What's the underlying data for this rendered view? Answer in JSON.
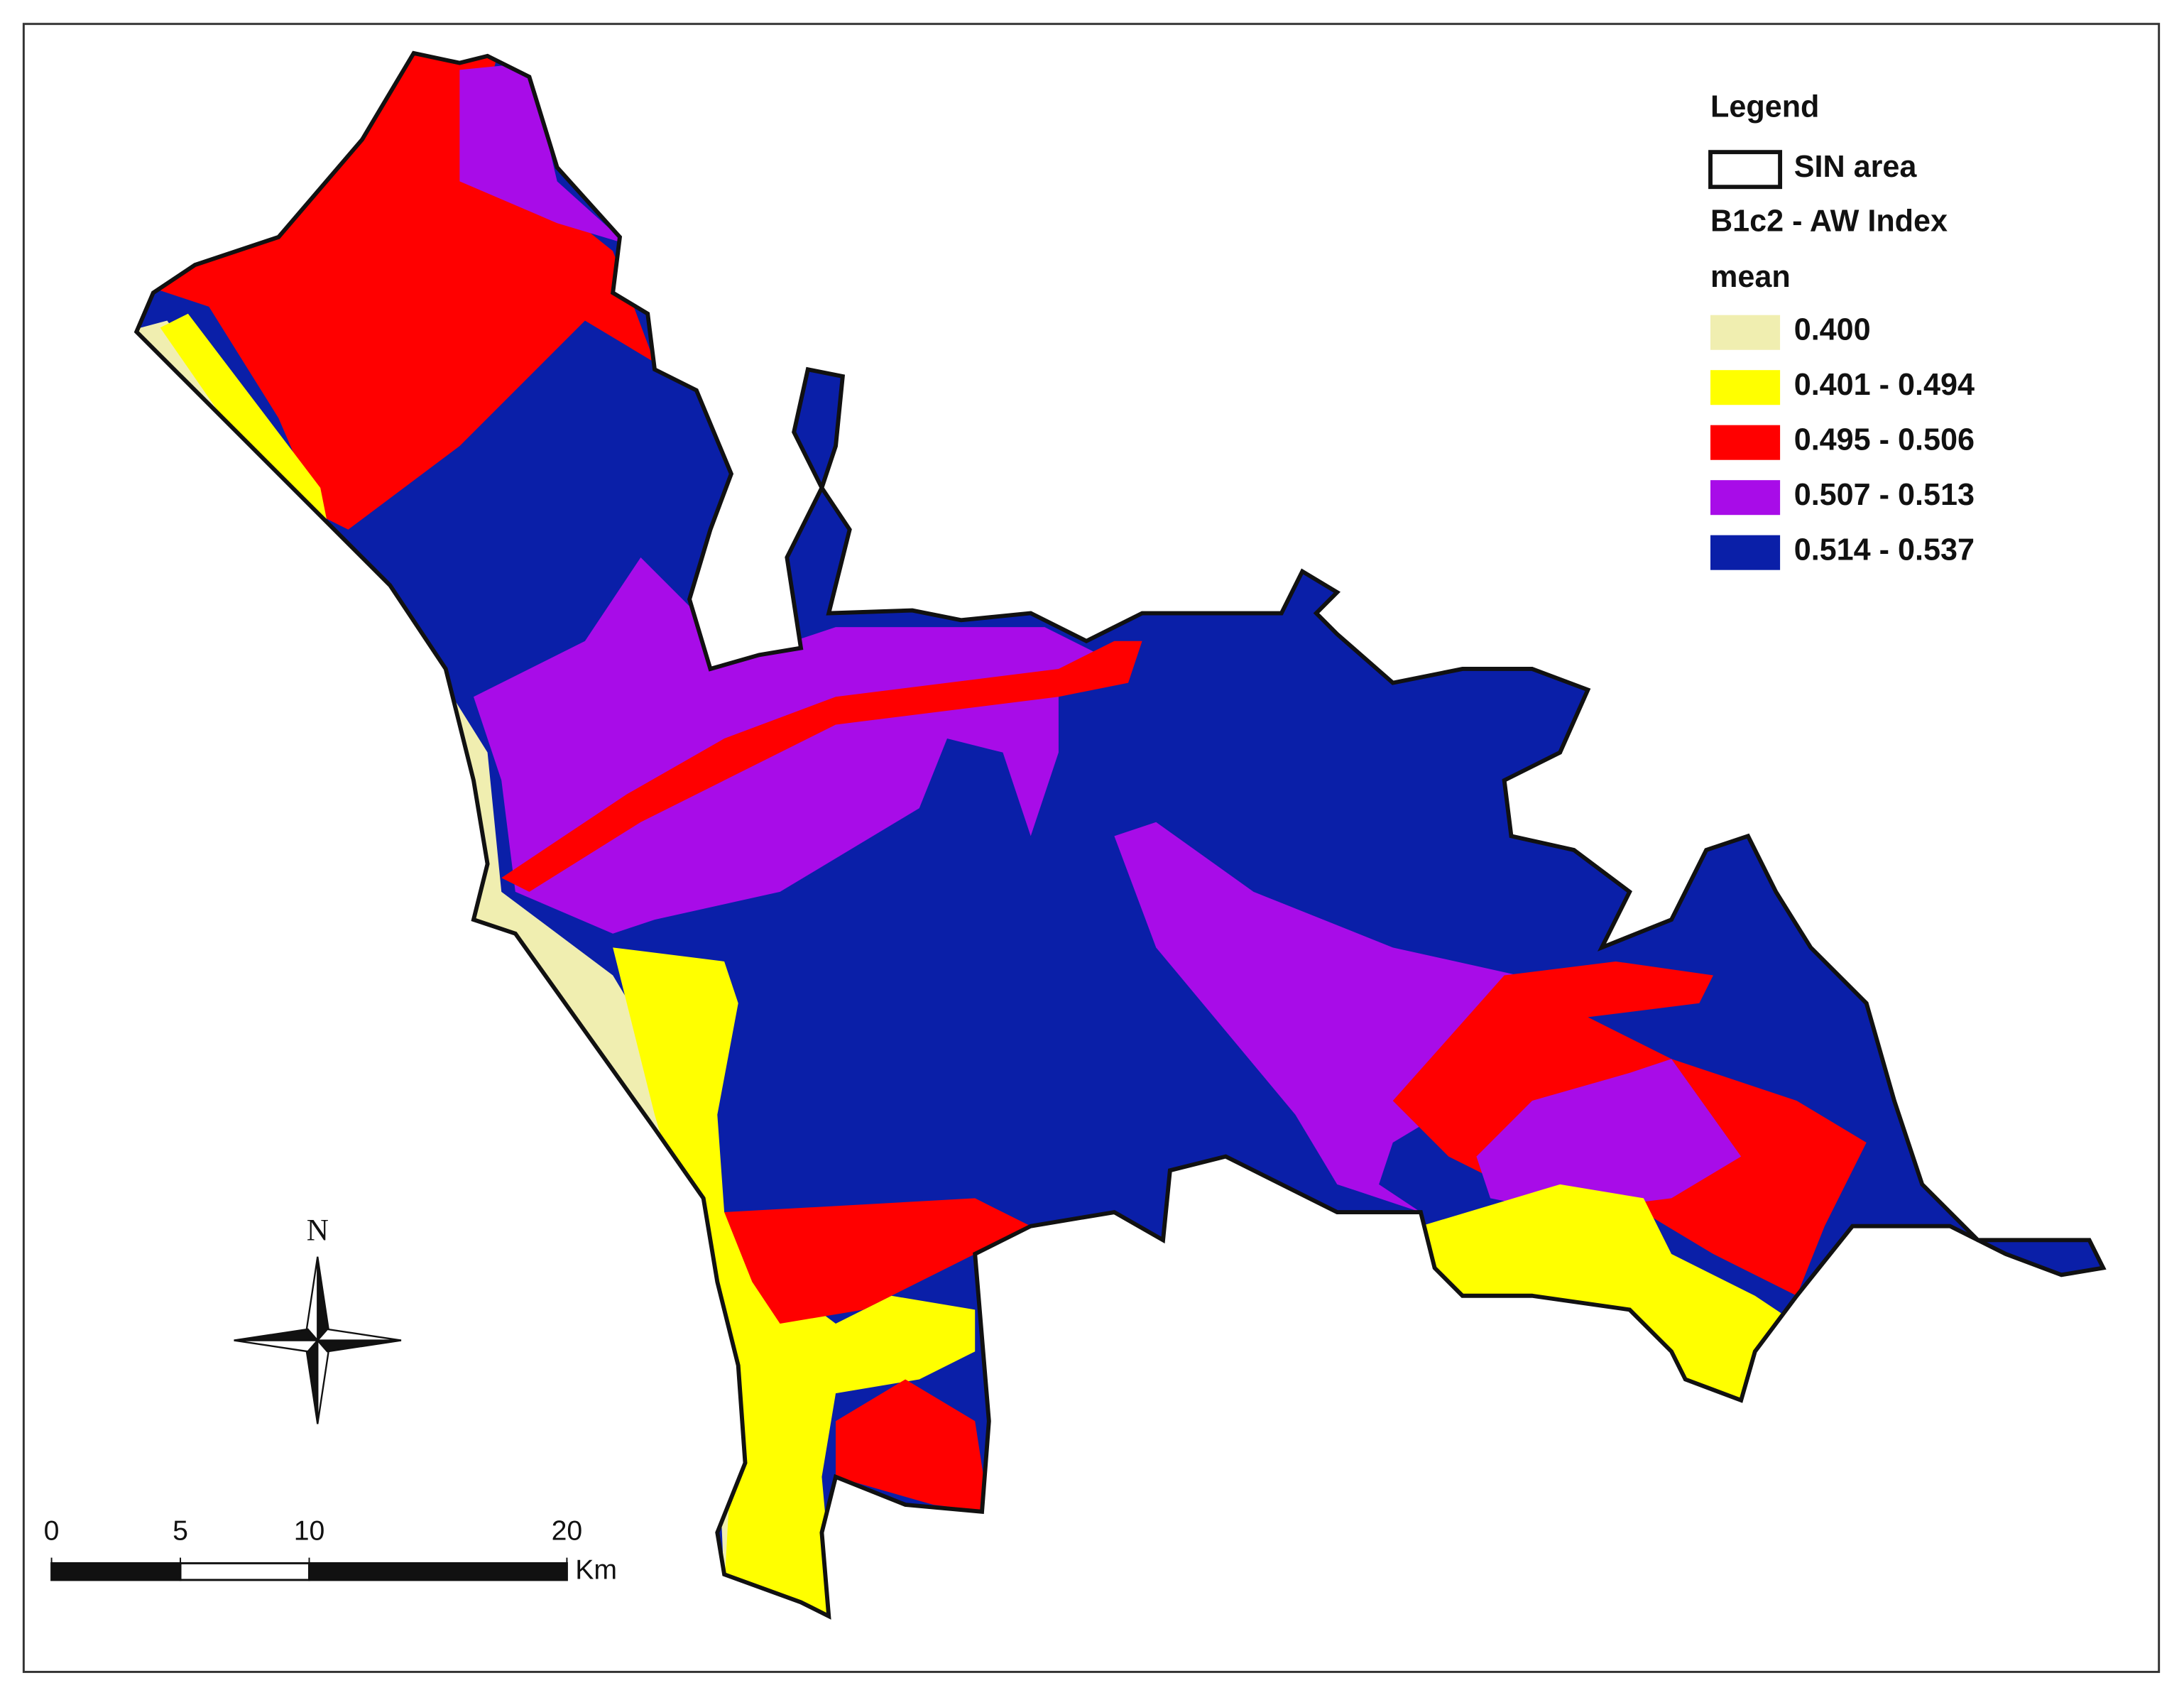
{
  "legend": {
    "title": "Legend",
    "boundary": "SIN area",
    "layer": "B1c2 - AW Index",
    "field": "mean",
    "classes": [
      {
        "label": "0.400",
        "color": "#f0eeb0"
      },
      {
        "label": "0.401 - 0.494",
        "color": "#ffff00"
      },
      {
        "label": "0.495 - 0.506",
        "color": "#ff0000"
      },
      {
        "label": "0.507 - 0.513",
        "color": "#a80ce8"
      },
      {
        "label": "0.514 - 0.537",
        "color": "#0a1fa8"
      }
    ]
  },
  "scale_bar": {
    "ticks": [
      0,
      5,
      10,
      20
    ],
    "unit": "Km"
  },
  "north_arrow": "N"
}
